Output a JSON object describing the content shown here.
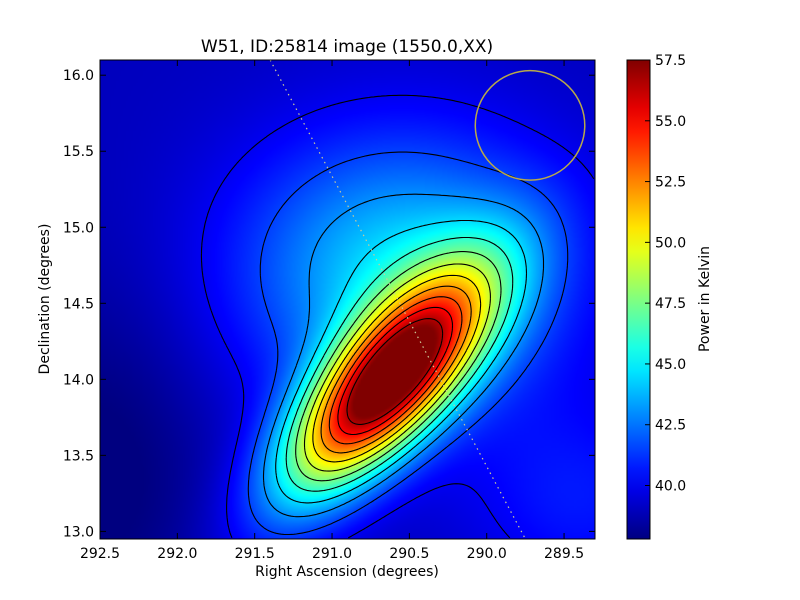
{
  "chart_data": {
    "type": "heatmap",
    "title": "W51, ID:25814 image (1550.0,XX)",
    "xlabel": "Right Ascension (degrees)",
    "ylabel": "Declination (degrees)",
    "xlim": [
      292.5,
      289.3
    ],
    "ylim": [
      12.95,
      16.1
    ],
    "xticks": [
      "292.5",
      "292.0",
      "291.5",
      "291.0",
      "290.5",
      "290.0",
      "289.5"
    ],
    "yticks": [
      "13.0",
      "13.5",
      "14.0",
      "14.5",
      "15.0",
      "15.5",
      "16.0"
    ],
    "colorbar": {
      "label": "Power in Kelvin",
      "range": [
        37.8,
        57.5
      ],
      "ticks": [
        "40.0",
        "42.5",
        "45.0",
        "47.5",
        "50.0",
        "52.5",
        "55.0",
        "57.5"
      ],
      "colormap": "jet"
    },
    "peak": {
      "ra": 290.65,
      "dec": 13.97,
      "value": 57.5
    },
    "contour_levels": [
      40.0,
      41.5,
      43.0,
      44.5,
      46.0,
      47.5,
      49.0,
      50.5,
      52.0,
      53.5,
      55.0,
      56.5
    ],
    "beam_circle": {
      "ra": 289.72,
      "dec": 15.67,
      "radius_deg": 0.36,
      "color": "#b8a94a"
    },
    "galactic_plane_track": [
      [
        291.4,
        16.1
      ],
      [
        289.75,
        12.95
      ]
    ],
    "grid": false,
    "colors": {
      "low": "#00007f",
      "background": "#0000ff",
      "high": "#7f0000",
      "contour": "#000000",
      "beam": "#b8a94a",
      "track": "#cccc99"
    }
  }
}
